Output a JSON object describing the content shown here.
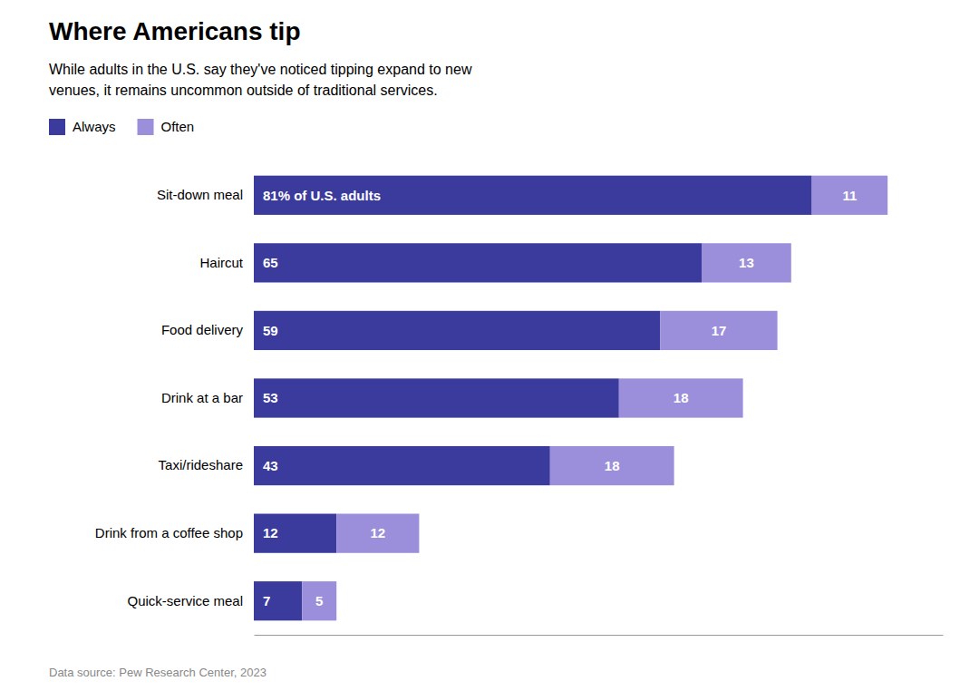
{
  "chart_data": {
    "type": "bar",
    "orientation": "horizontal",
    "stacked": true,
    "title": "Where Americans tip",
    "subtitle": "While adults in the U.S. say they've noticed tipping expand to new\nvenues, it remains uncommon outside of traditional services.",
    "source": "Data source: Pew Research Center, 2023",
    "categories": [
      "Sit-down meal",
      "Haircut",
      "Food delivery",
      "Drink at a bar",
      "Taxi/rideshare",
      "Drink from a coffee shop",
      "Quick-service meal"
    ],
    "series": [
      {
        "name": "Always",
        "color": "#3b3b9e",
        "values": [
          81,
          65,
          59,
          53,
          43,
          12,
          7
        ],
        "value_labels": [
          "81% of U.S. adults",
          "65",
          "59",
          "53",
          "43",
          "12",
          "7"
        ]
      },
      {
        "name": "Often",
        "color": "#9b8fdb",
        "values": [
          11,
          13,
          17,
          18,
          18,
          12,
          5
        ]
      }
    ],
    "xlim": [
      0,
      100
    ],
    "tick_labels": "y",
    "data_labels": true,
    "legend": "top-left",
    "grid": false
  }
}
